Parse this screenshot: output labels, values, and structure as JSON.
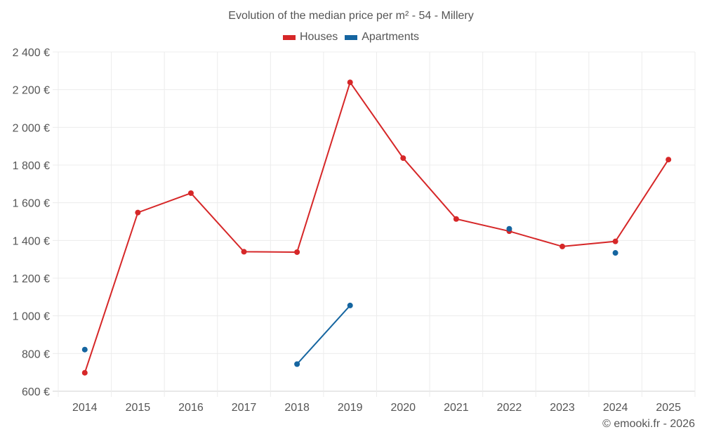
{
  "chart_data": {
    "type": "line",
    "title": "Evolution of the median price per m² - 54 - Millery",
    "xlabel": "",
    "ylabel": "",
    "x": [
      "2014",
      "2015",
      "2016",
      "2017",
      "2018",
      "2019",
      "2020",
      "2021",
      "2022",
      "2023",
      "2024",
      "2025"
    ],
    "ylim": [
      600,
      2400
    ],
    "yticks": [
      600,
      800,
      1000,
      1200,
      1400,
      1600,
      1800,
      2000,
      2200,
      2400
    ],
    "ytick_labels": [
      "600 €",
      "800 €",
      "1 000 €",
      "1 200 €",
      "1 400 €",
      "1 600 €",
      "1 800 €",
      "2 000 €",
      "2 200 €",
      "2 400 €"
    ],
    "grid": true,
    "legend_position": "top-center",
    "series": [
      {
        "name": "Houses",
        "color": "#d62728",
        "values": [
          698,
          1548,
          1651,
          1340,
          1338,
          2239,
          1837,
          1514,
          1449,
          1368,
          1395,
          1829
        ]
      },
      {
        "name": "Apartments",
        "color": "#1565a0",
        "values": [
          821,
          null,
          null,
          null,
          744,
          1055,
          null,
          null,
          1462,
          null,
          1334,
          null
        ]
      }
    ]
  },
  "credit": "© emooki.fr - 2026"
}
